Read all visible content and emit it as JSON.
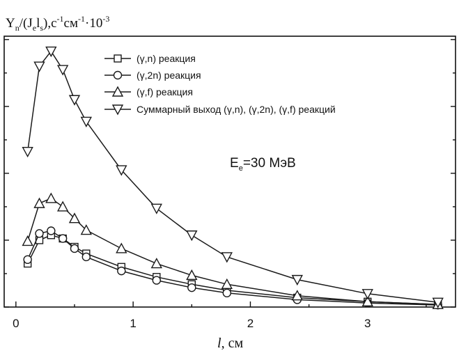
{
  "chart_data": {
    "type": "line",
    "title": "",
    "ylabel_parts": {
      "Y": "Y",
      "n_sub": "n",
      "slash_open": "/(J",
      "e_sub": "e",
      "l": "l",
      "s_sub": "s",
      "close": "),с",
      "minus1a": "-1",
      "cm": "см",
      "minus1b": "-1",
      "dot_ten": "·10",
      "minus3": "-3"
    },
    "xlabel_l": "l",
    "xlabel_unit": ", см",
    "annotation": {
      "E": "E",
      "e_sub": "e",
      "rest": "=30 МэВ"
    },
    "xlim": [
      -0.1,
      3.75
    ],
    "ylim": [
      0,
      8.1
    ],
    "x_ticks": [
      0,
      1,
      2,
      3
    ],
    "x_tick_labels": [
      "0",
      "1",
      "2",
      "3"
    ],
    "y_ticks": [
      0,
      1,
      2,
      3,
      4,
      5,
      6,
      7,
      8
    ],
    "grid": false,
    "legend_position": "top-right",
    "series": [
      {
        "name": "(γ,n) реакция",
        "marker": "square",
        "x": [
          0.1,
          0.2,
          0.3,
          0.4,
          0.5,
          0.6,
          0.9,
          1.2,
          1.5,
          1.8,
          2.4,
          3.0,
          3.6
        ],
        "y": [
          1.3,
          2.0,
          2.15,
          2.05,
          1.8,
          1.6,
          1.2,
          0.9,
          0.68,
          0.5,
          0.28,
          0.16,
          0.08
        ]
      },
      {
        "name": "(γ,2n) реакция",
        "marker": "circle",
        "x": [
          0.1,
          0.2,
          0.3,
          0.4,
          0.5,
          0.6,
          0.9,
          1.2,
          1.5,
          1.8,
          2.4,
          3.0,
          3.6
        ],
        "y": [
          1.42,
          2.2,
          2.28,
          2.05,
          1.75,
          1.5,
          1.08,
          0.8,
          0.58,
          0.42,
          0.22,
          0.12,
          0.06
        ]
      },
      {
        "name": "(γ,f) реакция",
        "marker": "triangle-up",
        "x": [
          0.1,
          0.2,
          0.3,
          0.4,
          0.5,
          0.6,
          0.9,
          1.2,
          1.5,
          1.8,
          2.4,
          3.0,
          3.6
        ],
        "y": [
          1.97,
          3.1,
          3.25,
          3.0,
          2.65,
          2.3,
          1.75,
          1.3,
          0.95,
          0.68,
          0.34,
          0.16,
          0.08
        ]
      },
      {
        "name": "Суммарный выход (γ,n), (γ,2n), (γ,f) реакций",
        "marker": "triangle-down",
        "x": [
          0.1,
          0.2,
          0.3,
          0.4,
          0.5,
          0.6,
          0.9,
          1.2,
          1.5,
          1.8,
          2.4,
          3.0,
          3.6
        ],
        "y": [
          4.65,
          7.2,
          7.65,
          7.1,
          6.2,
          5.55,
          4.1,
          2.95,
          2.15,
          1.5,
          0.82,
          0.4,
          0.14
        ]
      }
    ]
  },
  "colors": {
    "ink": "#1a1a1a",
    "background": "#ffffff"
  }
}
